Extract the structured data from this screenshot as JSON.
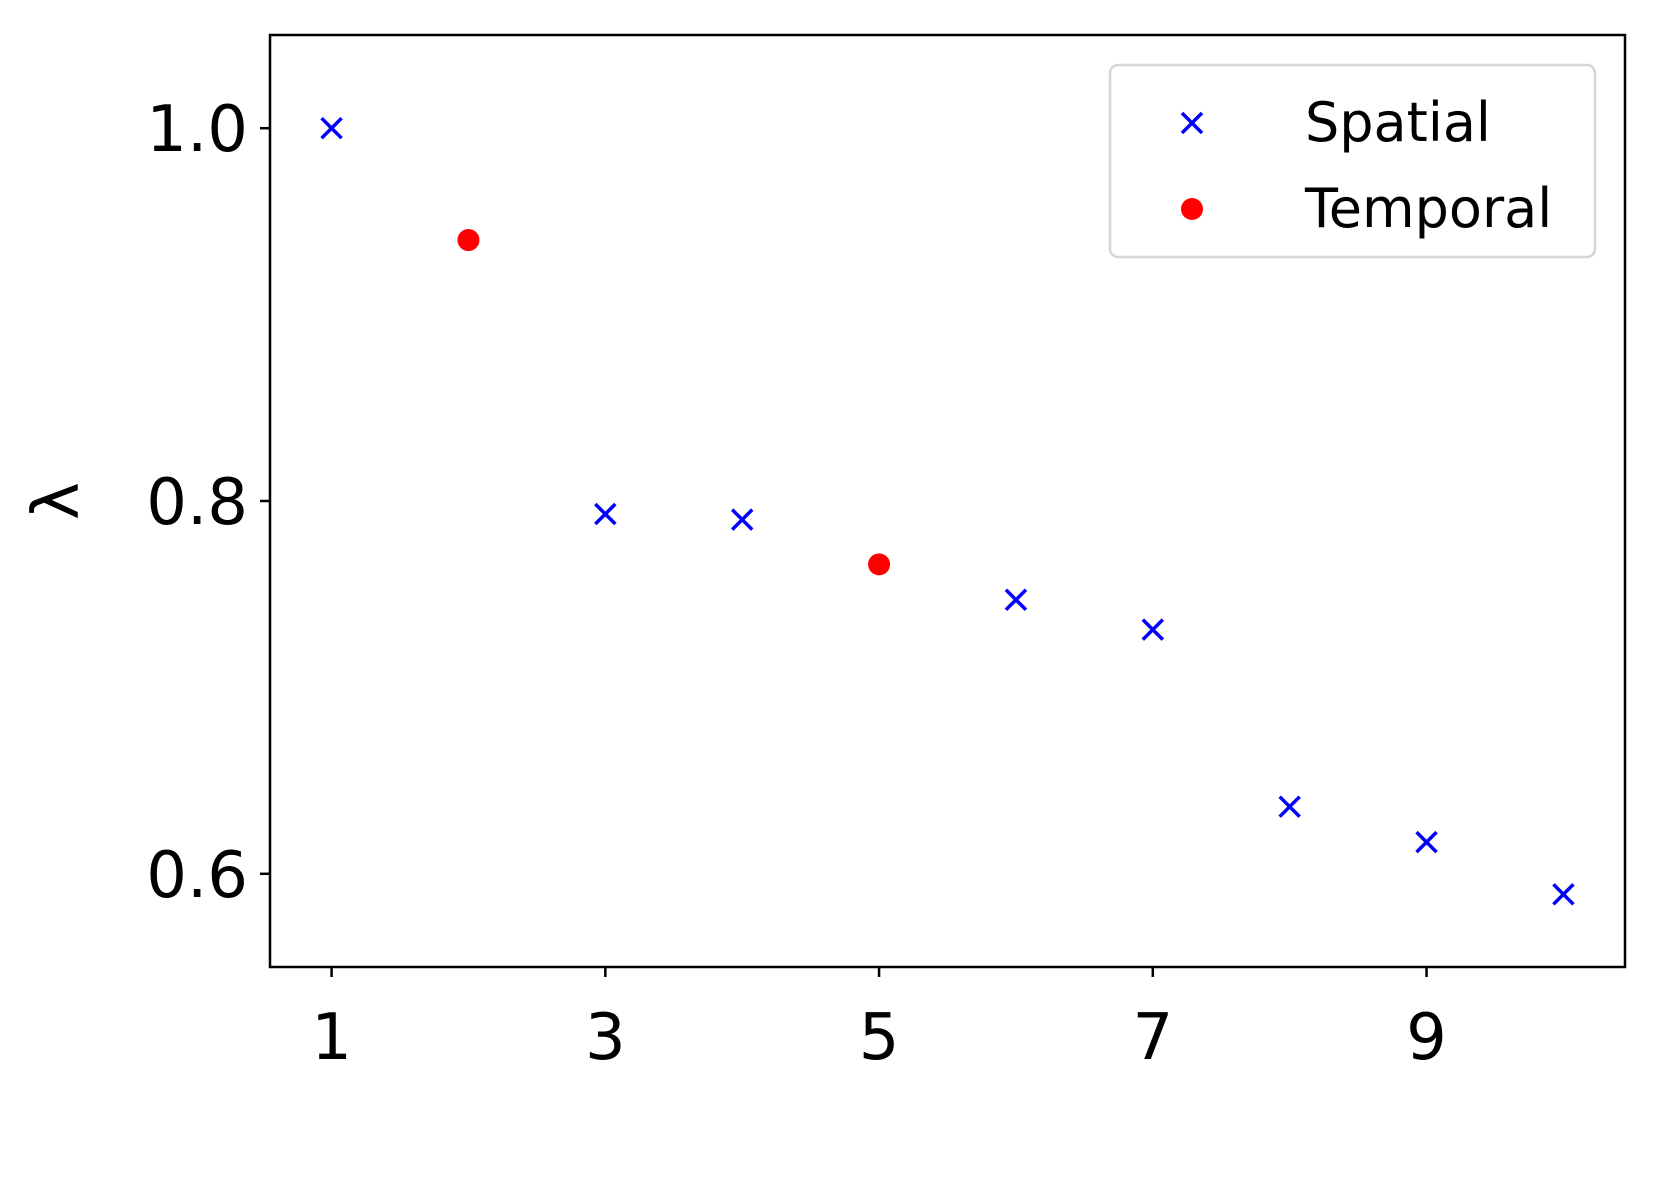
{
  "chart_data": {
    "type": "scatter",
    "title": "",
    "xlabel": "",
    "ylabel": "λ",
    "xlim": [
      0.55,
      10.45
    ],
    "ylim": [
      0.55,
      1.05
    ],
    "xticks": [
      "1",
      "3",
      "5",
      "7",
      "9"
    ],
    "yticks": [
      "0.6",
      "0.8",
      "1.0"
    ],
    "grid": false,
    "legend_position": "top-right",
    "series": [
      {
        "name": "Spatial",
        "marker": "x",
        "color": "#0000ff",
        "points": [
          {
            "x": 1,
            "y": 1.0
          },
          {
            "x": 3,
            "y": 0.793
          },
          {
            "x": 4,
            "y": 0.79
          },
          {
            "x": 6,
            "y": 0.747
          },
          {
            "x": 7,
            "y": 0.731
          },
          {
            "x": 8,
            "y": 0.636
          },
          {
            "x": 9,
            "y": 0.617
          },
          {
            "x": 10,
            "y": 0.589
          }
        ]
      },
      {
        "name": "Temporal",
        "marker": "o",
        "color": "#ff0000",
        "points": [
          {
            "x": 2,
            "y": 0.94
          },
          {
            "x": 5,
            "y": 0.766
          }
        ]
      }
    ]
  }
}
